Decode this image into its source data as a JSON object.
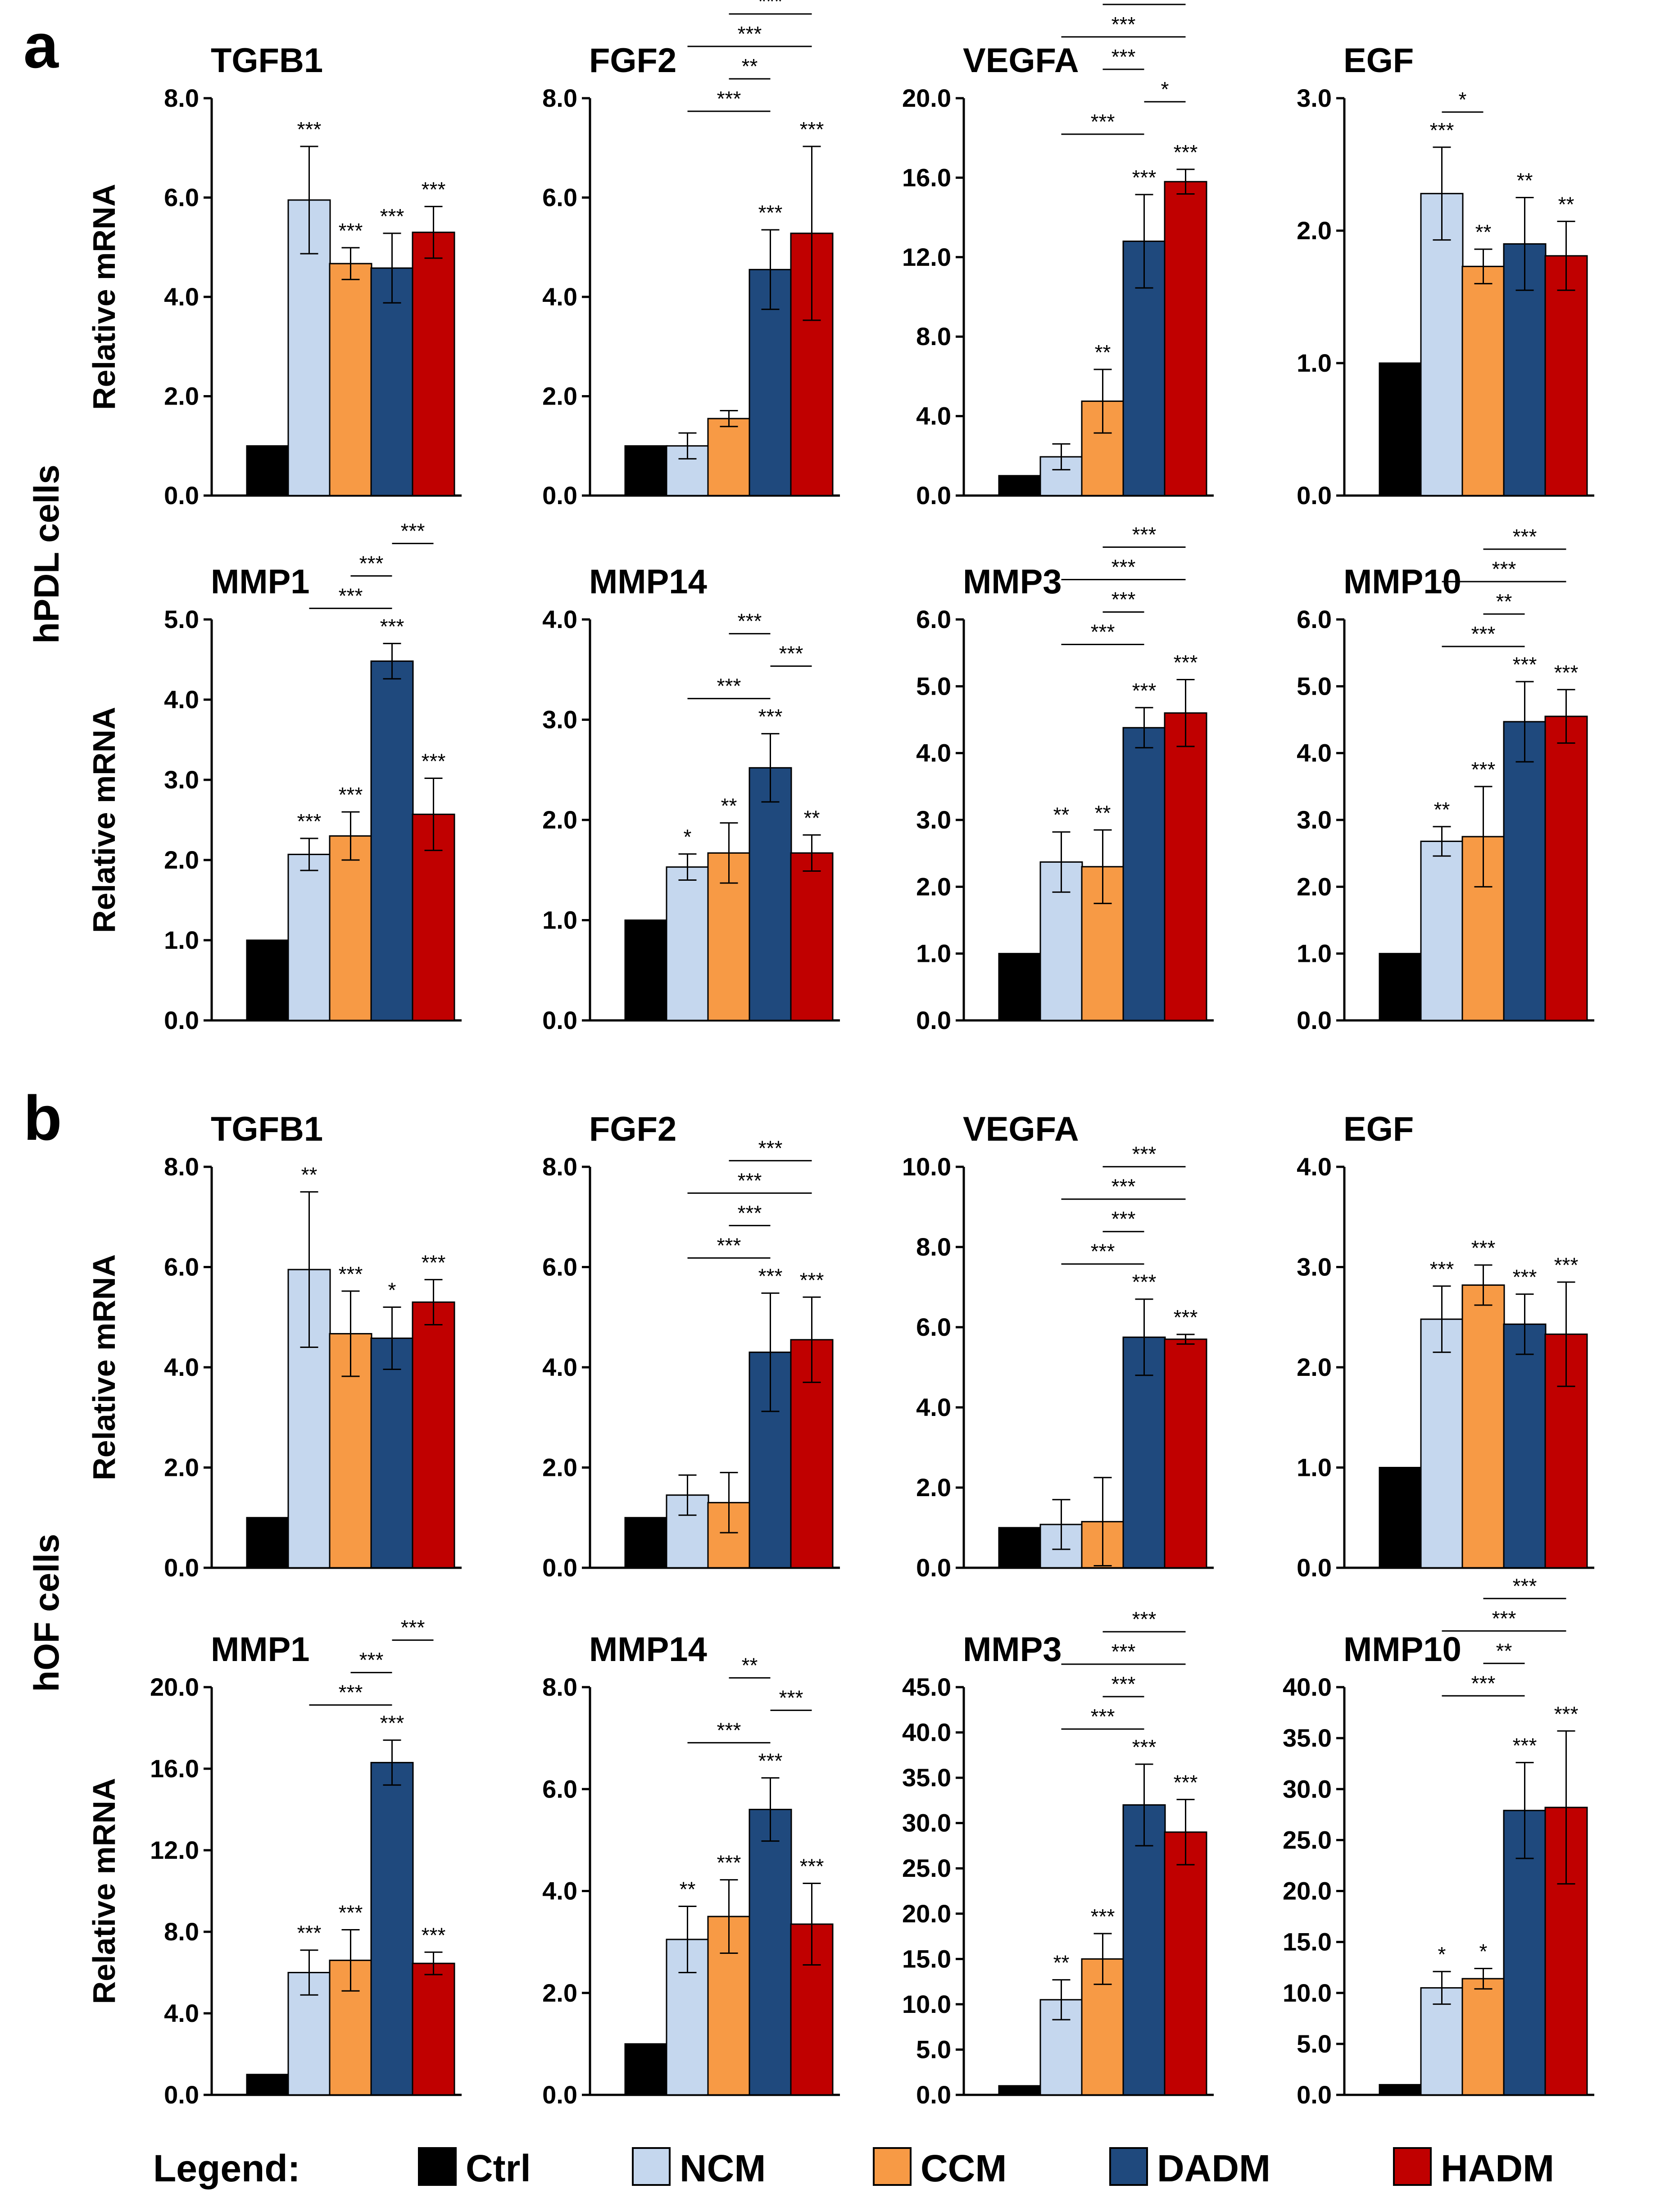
{
  "colors": {
    "Ctrl": "#000000",
    "NCM": "#c5d7ee",
    "CCM": "#f79a45",
    "DADM": "#1f497d",
    "HADM": "#c00000"
  },
  "panel_labels": [
    "a",
    "b"
  ],
  "row_labels": [
    "hPDL cells",
    "hOF cells"
  ],
  "ylabel": "Relative mRNA",
  "legend": {
    "title": "Legend:",
    "items": [
      "Ctrl",
      "NCM",
      "CCM",
      "DADM",
      "HADM"
    ]
  },
  "chart_data": [
    {
      "type": "bar",
      "panel": "a",
      "title": "TGFB1",
      "categories": [
        "Ctrl",
        "NCM",
        "CCM",
        "DADM",
        "HADM"
      ],
      "values": [
        1.0,
        5.95,
        4.67,
        4.58,
        5.3
      ],
      "errors": [
        0,
        1.08,
        0.32,
        0.7,
        0.52
      ],
      "sig": [
        "",
        "***",
        "***",
        "***",
        "***"
      ],
      "ylim": [
        0,
        8
      ],
      "yticks": [
        0,
        2,
        4,
        6,
        8
      ],
      "ytick_labels": [
        "0.0",
        "2.0",
        "4.0",
        "6.0",
        "8.0"
      ],
      "comparisons": []
    },
    {
      "type": "bar",
      "panel": "a",
      "title": "FGF2",
      "categories": [
        "Ctrl",
        "NCM",
        "CCM",
        "DADM",
        "HADM"
      ],
      "values": [
        1.0,
        1.0,
        1.55,
        4.55,
        5.28
      ],
      "errors": [
        0,
        0.26,
        0.16,
        0.8,
        1.75
      ],
      "sig": [
        "",
        "",
        "",
        "***",
        "***"
      ],
      "ylim": [
        0,
        8
      ],
      "yticks": [
        0,
        2,
        4,
        6,
        8
      ],
      "ytick_labels": [
        "0.0",
        "2.0",
        "4.0",
        "6.0",
        "8.0"
      ],
      "comparisons": [
        {
          "from": 1,
          "to": 3,
          "label": "***"
        },
        {
          "from": 2,
          "to": 3,
          "label": "**"
        },
        {
          "from": 1,
          "to": 4,
          "label": "***"
        },
        {
          "from": 2,
          "to": 4,
          "label": "***"
        }
      ]
    },
    {
      "type": "bar",
      "panel": "a",
      "title": "VEGFA",
      "categories": [
        "Ctrl",
        "NCM",
        "CCM",
        "DADM",
        "HADM"
      ],
      "values": [
        1.0,
        1.95,
        4.75,
        12.8,
        15.8
      ],
      "errors": [
        0,
        0.65,
        1.6,
        2.35,
        0.62
      ],
      "sig": [
        "",
        "",
        "**",
        "***",
        "***"
      ],
      "ylim": [
        0,
        20
      ],
      "yticks": [
        0,
        4,
        8,
        12,
        16,
        20
      ],
      "ytick_labels": [
        "0.0",
        "4.0",
        "8.0",
        "12.0",
        "16.0",
        "20.0"
      ],
      "comparisons": [
        {
          "from": 1,
          "to": 3,
          "label": "***"
        },
        {
          "from": 3,
          "to": 4,
          "label": "*"
        },
        {
          "from": 2,
          "to": 3,
          "label": "***"
        },
        {
          "from": 1,
          "to": 4,
          "label": "***"
        },
        {
          "from": 2,
          "to": 4,
          "label": "***"
        }
      ]
    },
    {
      "type": "bar",
      "panel": "a",
      "title": "EGF",
      "categories": [
        "Ctrl",
        "NCM",
        "CCM",
        "DADM",
        "HADM"
      ],
      "values": [
        1.0,
        2.28,
        1.73,
        1.9,
        1.81
      ],
      "errors": [
        0,
        0.35,
        0.13,
        0.35,
        0.26
      ],
      "sig": [
        "",
        "***",
        "**",
        "**",
        "**"
      ],
      "ylim": [
        0,
        3
      ],
      "yticks": [
        0,
        1,
        2,
        3
      ],
      "ytick_labels": [
        "0.0",
        "1.0",
        "2.0",
        "3.0"
      ],
      "comparisons": [
        {
          "from": 1,
          "to": 2,
          "label": "*"
        }
      ]
    },
    {
      "type": "bar",
      "panel": "a",
      "title": "MMP1",
      "categories": [
        "Ctrl",
        "NCM",
        "CCM",
        "DADM",
        "HADM"
      ],
      "values": [
        1.0,
        2.07,
        2.3,
        4.48,
        2.57
      ],
      "errors": [
        0,
        0.2,
        0.3,
        0.22,
        0.45
      ],
      "sig": [
        "",
        "***",
        "***",
        "***",
        "***"
      ],
      "ylim": [
        0,
        5
      ],
      "yticks": [
        0,
        1,
        2,
        3,
        4,
        5
      ],
      "ytick_labels": [
        "0.0",
        "1.0",
        "2.0",
        "3.0",
        "4.0",
        "5.0"
      ],
      "comparisons": [
        {
          "from": 1,
          "to": 3,
          "label": "***"
        },
        {
          "from": 2,
          "to": 3,
          "label": "***"
        },
        {
          "from": 3,
          "to": 4,
          "label": "***"
        }
      ]
    },
    {
      "type": "bar",
      "panel": "a",
      "title": "MMP14",
      "categories": [
        "Ctrl",
        "NCM",
        "CCM",
        "DADM",
        "HADM"
      ],
      "values": [
        1.0,
        1.53,
        1.67,
        2.52,
        1.67
      ],
      "errors": [
        0,
        0.13,
        0.3,
        0.34,
        0.18
      ],
      "sig": [
        "",
        "*",
        "**",
        "***",
        "**"
      ],
      "ylim": [
        0,
        4
      ],
      "yticks": [
        0,
        1,
        2,
        3,
        4
      ],
      "ytick_labels": [
        "0.0",
        "1.0",
        "2.0",
        "3.0",
        "4.0"
      ],
      "comparisons": [
        {
          "from": 1,
          "to": 3,
          "label": "***"
        },
        {
          "from": 3,
          "to": 4,
          "label": "***"
        },
        {
          "from": 2,
          "to": 3,
          "label": "***"
        }
      ]
    },
    {
      "type": "bar",
      "panel": "a",
      "title": "MMP3",
      "categories": [
        "Ctrl",
        "NCM",
        "CCM",
        "DADM",
        "HADM"
      ],
      "values": [
        1.0,
        2.37,
        2.3,
        4.38,
        4.6
      ],
      "errors": [
        0,
        0.45,
        0.55,
        0.3,
        0.5
      ],
      "sig": [
        "",
        "**",
        "**",
        "***",
        "***"
      ],
      "ylim": [
        0,
        6
      ],
      "yticks": [
        0,
        1,
        2,
        3,
        4,
        5,
        6
      ],
      "ytick_labels": [
        "0.0",
        "1.0",
        "2.0",
        "3.0",
        "4.0",
        "5.0",
        "6.0"
      ],
      "comparisons": [
        {
          "from": 1,
          "to": 3,
          "label": "***"
        },
        {
          "from": 2,
          "to": 3,
          "label": "***"
        },
        {
          "from": 1,
          "to": 4,
          "label": "***"
        },
        {
          "from": 2,
          "to": 4,
          "label": "***"
        }
      ]
    },
    {
      "type": "bar",
      "panel": "a",
      "title": "MMP10",
      "categories": [
        "Ctrl",
        "NCM",
        "CCM",
        "DADM",
        "HADM"
      ],
      "values": [
        1.0,
        2.68,
        2.75,
        4.47,
        4.55
      ],
      "errors": [
        0,
        0.22,
        0.75,
        0.6,
        0.4
      ],
      "sig": [
        "",
        "**",
        "***",
        "***",
        "***"
      ],
      "ylim": [
        0,
        6
      ],
      "yticks": [
        0,
        1,
        2,
        3,
        4,
        5,
        6
      ],
      "ytick_labels": [
        "0.0",
        "1.0",
        "2.0",
        "3.0",
        "4.0",
        "5.0",
        "6.0"
      ],
      "comparisons": [
        {
          "from": 1,
          "to": 3,
          "label": "***"
        },
        {
          "from": 2,
          "to": 3,
          "label": "**"
        },
        {
          "from": 1,
          "to": 4,
          "label": "***"
        },
        {
          "from": 2,
          "to": 4,
          "label": "***"
        }
      ]
    },
    {
      "type": "bar",
      "panel": "b",
      "title": "TGFB1",
      "categories": [
        "Ctrl",
        "NCM",
        "CCM",
        "DADM",
        "HADM"
      ],
      "values": [
        1.0,
        5.95,
        4.67,
        4.58,
        5.3
      ],
      "errors": [
        0,
        1.55,
        0.85,
        0.62,
        0.45
      ],
      "sig": [
        "",
        "**",
        "***",
        "*",
        "***"
      ],
      "ylim": [
        0,
        8
      ],
      "yticks": [
        0,
        2,
        4,
        6,
        8
      ],
      "ytick_labels": [
        "0.0",
        "2.0",
        "4.0",
        "6.0",
        "8.0"
      ],
      "comparisons": []
    },
    {
      "type": "bar",
      "panel": "b",
      "title": "FGF2",
      "categories": [
        "Ctrl",
        "NCM",
        "CCM",
        "DADM",
        "HADM"
      ],
      "values": [
        1.0,
        1.45,
        1.3,
        4.3,
        4.55
      ],
      "errors": [
        0,
        0.4,
        0.6,
        1.18,
        0.85
      ],
      "sig": [
        "",
        "",
        "",
        "***",
        "***"
      ],
      "ylim": [
        0,
        8
      ],
      "yticks": [
        0,
        2,
        4,
        6,
        8
      ],
      "ytick_labels": [
        "0.0",
        "2.0",
        "4.0",
        "6.0",
        "8.0"
      ],
      "comparisons": [
        {
          "from": 1,
          "to": 3,
          "label": "***"
        },
        {
          "from": 2,
          "to": 3,
          "label": "***"
        },
        {
          "from": 1,
          "to": 4,
          "label": "***"
        },
        {
          "from": 2,
          "to": 4,
          "label": "***"
        }
      ]
    },
    {
      "type": "bar",
      "panel": "b",
      "title": "VEGFA",
      "categories": [
        "Ctrl",
        "NCM",
        "CCM",
        "DADM",
        "HADM"
      ],
      "values": [
        1.0,
        1.08,
        1.15,
        5.75,
        5.7
      ],
      "errors": [
        0,
        0.62,
        1.1,
        0.95,
        0.12
      ],
      "sig": [
        "",
        "",
        "",
        "***",
        "***"
      ],
      "ylim": [
        0,
        10
      ],
      "yticks": [
        0,
        2,
        4,
        6,
        8,
        10
      ],
      "ytick_labels": [
        "0.0",
        "2.0",
        "4.0",
        "6.0",
        "8.0",
        "10.0"
      ],
      "comparisons": [
        {
          "from": 1,
          "to": 3,
          "label": "***"
        },
        {
          "from": 2,
          "to": 3,
          "label": "***"
        },
        {
          "from": 1,
          "to": 4,
          "label": "***"
        },
        {
          "from": 2,
          "to": 4,
          "label": "***"
        }
      ]
    },
    {
      "type": "bar",
      "panel": "b",
      "title": "EGF",
      "categories": [
        "Ctrl",
        "NCM",
        "CCM",
        "DADM",
        "HADM"
      ],
      "values": [
        1.0,
        2.48,
        2.82,
        2.43,
        2.33
      ],
      "errors": [
        0,
        0.33,
        0.2,
        0.3,
        0.52
      ],
      "sig": [
        "",
        "***",
        "***",
        "***",
        "***"
      ],
      "ylim": [
        0,
        4
      ],
      "yticks": [
        0,
        1,
        2,
        3,
        4
      ],
      "ytick_labels": [
        "0.0",
        "1.0",
        "2.0",
        "3.0",
        "4.0"
      ],
      "comparisons": []
    },
    {
      "type": "bar",
      "panel": "b",
      "title": "MMP1",
      "categories": [
        "Ctrl",
        "NCM",
        "CCM",
        "DADM",
        "HADM"
      ],
      "values": [
        1.0,
        6.0,
        6.6,
        16.3,
        6.45
      ],
      "errors": [
        0,
        1.1,
        1.5,
        1.1,
        0.55
      ],
      "sig": [
        "",
        "***",
        "***",
        "***",
        "***"
      ],
      "ylim": [
        0,
        20
      ],
      "yticks": [
        0,
        4,
        8,
        12,
        16,
        20
      ],
      "ytick_labels": [
        "0.0",
        "4.0",
        "8.0",
        "12.0",
        "16.0",
        "20.0"
      ],
      "comparisons": [
        {
          "from": 1,
          "to": 3,
          "label": "***"
        },
        {
          "from": 2,
          "to": 3,
          "label": "***"
        },
        {
          "from": 3,
          "to": 4,
          "label": "***"
        }
      ]
    },
    {
      "type": "bar",
      "panel": "b",
      "title": "MMP14",
      "categories": [
        "Ctrl",
        "NCM",
        "CCM",
        "DADM",
        "HADM"
      ],
      "values": [
        1.0,
        3.05,
        3.5,
        5.6,
        3.35
      ],
      "errors": [
        0,
        0.65,
        0.72,
        0.62,
        0.8
      ],
      "sig": [
        "",
        "**",
        "***",
        "***",
        "***"
      ],
      "ylim": [
        0,
        8
      ],
      "yticks": [
        0,
        2,
        4,
        6,
        8
      ],
      "ytick_labels": [
        "0.0",
        "2.0",
        "4.0",
        "6.0",
        "8.0"
      ],
      "comparisons": [
        {
          "from": 1,
          "to": 3,
          "label": "***"
        },
        {
          "from": 3,
          "to": 4,
          "label": "***"
        },
        {
          "from": 2,
          "to": 3,
          "label": "**"
        }
      ]
    },
    {
      "type": "bar",
      "panel": "b",
      "title": "MMP3",
      "categories": [
        "Ctrl",
        "NCM",
        "CCM",
        "DADM",
        "HADM"
      ],
      "values": [
        1.0,
        10.5,
        15.0,
        32.0,
        29.0
      ],
      "errors": [
        0,
        2.2,
        2.8,
        4.5,
        3.6
      ],
      "sig": [
        "",
        "**",
        "***",
        "***",
        "***"
      ],
      "ylim": [
        0,
        45
      ],
      "yticks": [
        0,
        5,
        10,
        15,
        20,
        25,
        30,
        35,
        40,
        45
      ],
      "ytick_labels": [
        "0.0",
        "5.0",
        "10.0",
        "15.0",
        "20.0",
        "25.0",
        "30.0",
        "35.0",
        "40.0",
        "45.0"
      ],
      "comparisons": [
        {
          "from": 1,
          "to": 3,
          "label": "***"
        },
        {
          "from": 2,
          "to": 3,
          "label": "***"
        },
        {
          "from": 1,
          "to": 4,
          "label": "***"
        },
        {
          "from": 2,
          "to": 4,
          "label": "***"
        }
      ]
    },
    {
      "type": "bar",
      "panel": "b",
      "title": "MMP10",
      "categories": [
        "Ctrl",
        "NCM",
        "CCM",
        "DADM",
        "HADM"
      ],
      "values": [
        1.0,
        10.5,
        11.4,
        27.9,
        28.2
      ],
      "errors": [
        0,
        1.6,
        1.0,
        4.7,
        7.5
      ],
      "sig": [
        "",
        "*",
        "*",
        "***",
        "***"
      ],
      "ylim": [
        0,
        40
      ],
      "yticks": [
        0,
        5,
        10,
        15,
        20,
        25,
        30,
        35,
        40
      ],
      "ytick_labels": [
        "0.0",
        "5.0",
        "10.0",
        "15.0",
        "20.0",
        "25.0",
        "30.0",
        "35.0",
        "40.0"
      ],
      "comparisons": [
        {
          "from": 1,
          "to": 3,
          "label": "***"
        },
        {
          "from": 2,
          "to": 3,
          "label": "**"
        },
        {
          "from": 1,
          "to": 4,
          "label": "***"
        },
        {
          "from": 2,
          "to": 4,
          "label": "***"
        }
      ]
    }
  ]
}
